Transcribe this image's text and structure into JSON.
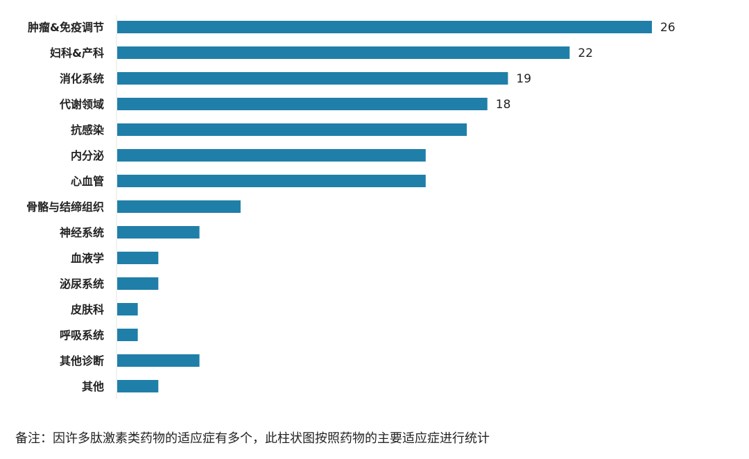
{
  "chart_data": {
    "type": "bar",
    "orientation": "horizontal",
    "categories": [
      "肿瘤&免疫调节",
      "妇科&产科",
      "消化系统",
      "代谢领域",
      "抗感染",
      "内分泌",
      "心血管",
      "骨骼与结缔组织",
      "神经系统",
      "血液学",
      "泌尿系统",
      "皮肤科",
      "呼吸系统",
      "其他诊断",
      "其他"
    ],
    "values": [
      26,
      22,
      19,
      18,
      17,
      15,
      15,
      6,
      4,
      2,
      2,
      1,
      1,
      4,
      2
    ],
    "data_labels": [
      "26",
      "22",
      "19",
      "18",
      "",
      "",
      "",
      "",
      "",
      "",
      "",
      "",
      "",
      "",
      ""
    ],
    "bar_color": "#1f7fa8",
    "xlim": [
      0,
      26
    ],
    "grid": false,
    "legend": "none"
  },
  "footnote": "备注：因许多肽激素类药物的适应症有多个，此柱状图按照药物的主要适应症进行统计"
}
